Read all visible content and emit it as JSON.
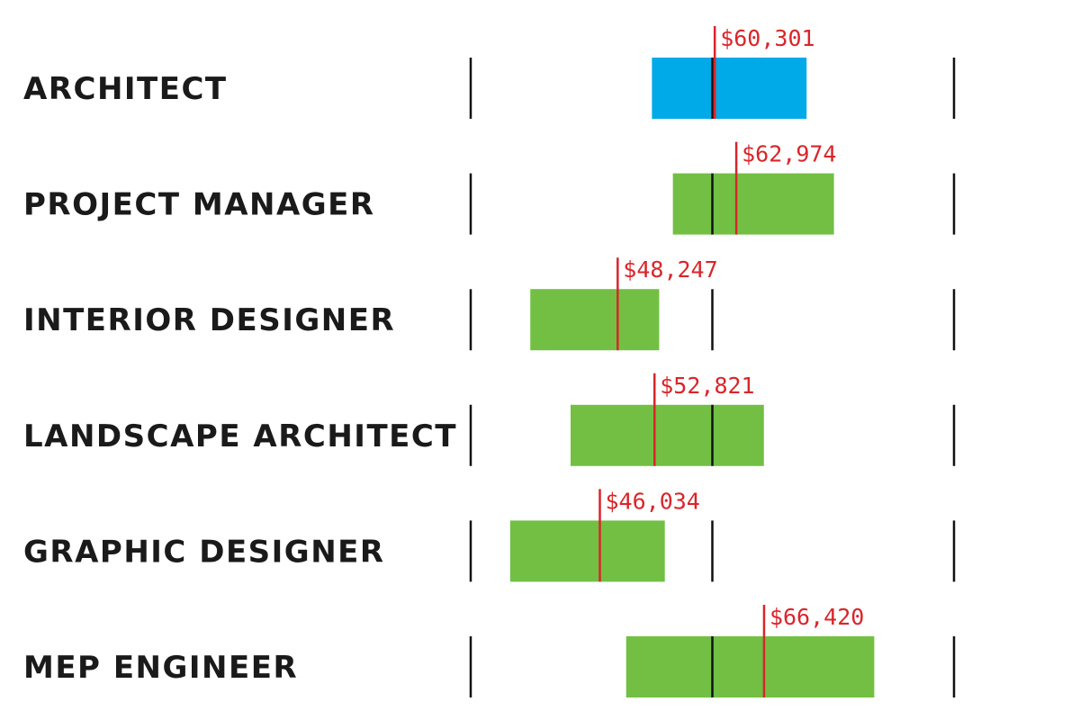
{
  "chart_data": {
    "type": "range-bar",
    "title": "",
    "xlabel": "",
    "ylabel": "",
    "xlim": [
      30000,
      90000
    ],
    "reference_lines": [
      30000,
      60000,
      90000
    ],
    "colors": {
      "highlight": "#00a9e8",
      "default": "#72bf44",
      "marker": "#d9252b",
      "reference": "#111111"
    },
    "rows": [
      {
        "label": "ARCHITECT",
        "low": 52500,
        "high": 71700,
        "value": 60301,
        "value_label": "$60,301",
        "highlight": true
      },
      {
        "label": "PROJECT MANAGER",
        "low": 55100,
        "high": 75100,
        "value": 62974,
        "value_label": "$62,974",
        "highlight": false
      },
      {
        "label": "INTERIOR DESIGNER",
        "low": 37400,
        "high": 53400,
        "value": 48247,
        "value_label": "$48,247",
        "highlight": false
      },
      {
        "label": "LANDSCAPE ARCHITECT",
        "low": 42400,
        "high": 66400,
        "value": 52821,
        "value_label": "$52,821",
        "highlight": false
      },
      {
        "label": "GRAPHIC DESIGNER",
        "low": 34900,
        "high": 54100,
        "value": 46034,
        "value_label": "$46,034",
        "highlight": false
      },
      {
        "label": "MEP ENGINEER",
        "low": 49300,
        "high": 80100,
        "value": 66420,
        "value_label": "$66,420",
        "highlight": false
      }
    ]
  }
}
